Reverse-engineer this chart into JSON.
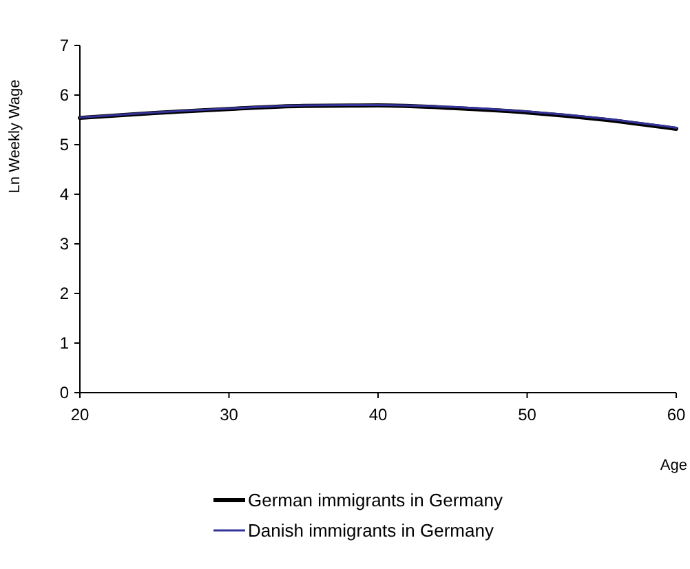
{
  "chart_data": {
    "type": "line",
    "xlabel": "Age",
    "ylabel": "Ln Weekly Wage",
    "xlim": [
      20,
      60
    ],
    "xticks": [
      20,
      30,
      40,
      50,
      60
    ],
    "ylim": [
      0,
      7
    ],
    "yticks": [
      0,
      1,
      2,
      3,
      4,
      5,
      6,
      7
    ],
    "x": [
      20,
      25,
      30,
      35,
      40,
      45,
      50,
      55,
      60
    ],
    "legend": "bottom",
    "grid": false,
    "marker": "none",
    "line_style": "solid",
    "series": [
      {
        "name": "German immigrants in Germany",
        "color": "#000000",
        "values": [
          5.54,
          5.64,
          5.72,
          5.78,
          5.79,
          5.74,
          5.65,
          5.51,
          5.32
        ]
      },
      {
        "name": "Danish immigrants in Germany",
        "color": "#333399",
        "values": [
          5.55,
          5.65,
          5.73,
          5.79,
          5.8,
          5.76,
          5.67,
          5.53,
          5.34
        ]
      }
    ]
  }
}
